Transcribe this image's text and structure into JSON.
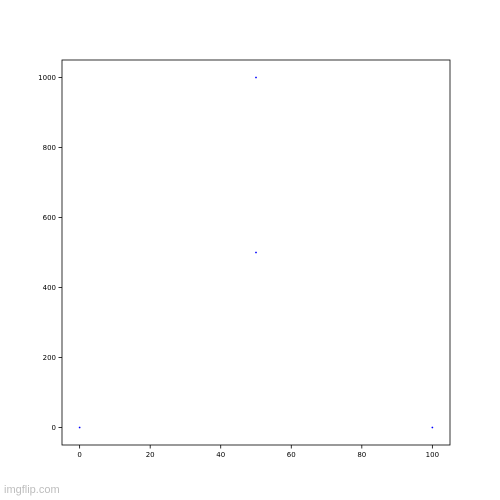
{
  "chart_data": {
    "type": "scatter",
    "title": "",
    "xlabel": "",
    "ylabel": "",
    "xlim": [
      -5,
      105
    ],
    "ylim": [
      -50,
      1050
    ],
    "x_ticks": [
      0,
      20,
      40,
      60,
      80,
      100
    ],
    "y_ticks": [
      0,
      200,
      400,
      600,
      800,
      1000
    ],
    "grid": false,
    "series": [
      {
        "points": [
          {
            "x": 0,
            "y": 0
          },
          {
            "x": 50,
            "y": 500
          },
          {
            "x": 50,
            "y": 1000
          },
          {
            "x": 100,
            "y": 0
          }
        ],
        "color": "#0000ff"
      }
    ]
  },
  "watermark": {
    "text": "imgflip.com"
  }
}
